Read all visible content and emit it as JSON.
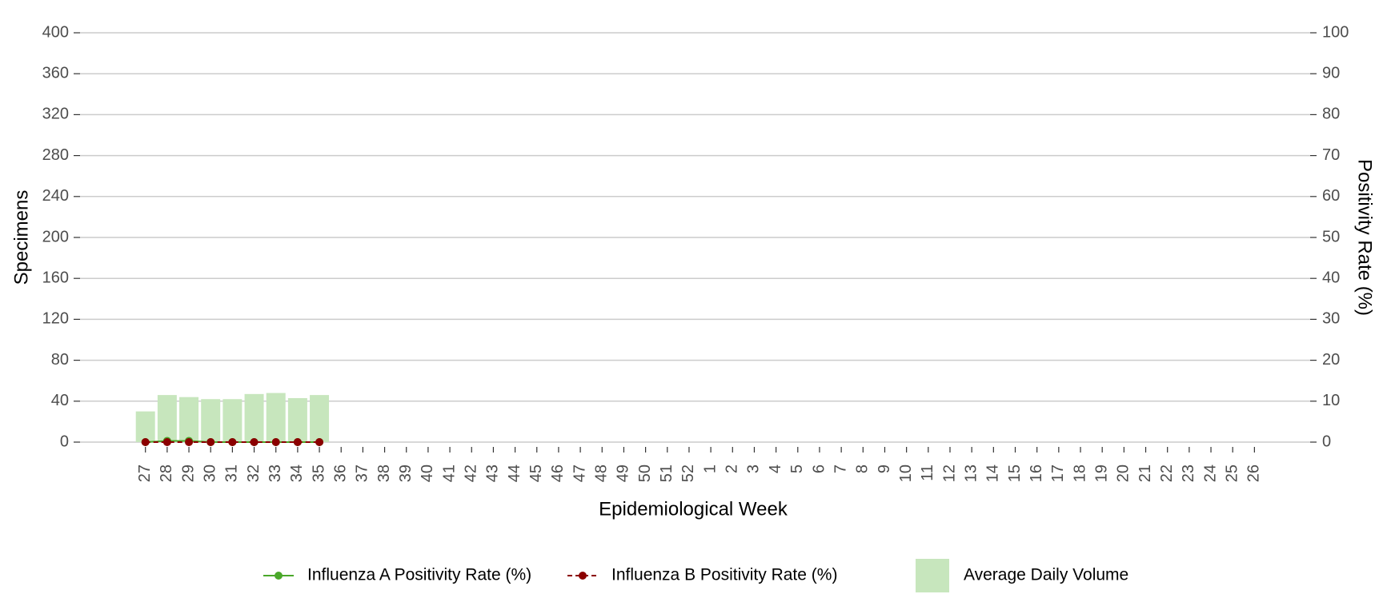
{
  "chart_data": {
    "type": "bar",
    "x_label": "Epidemiological Week",
    "y_label": "Specimens",
    "y2_label": "Positivity Rate (%)",
    "categories": [
      "27",
      "28",
      "29",
      "30",
      "31",
      "32",
      "33",
      "34",
      "35",
      "36",
      "37",
      "38",
      "39",
      "40",
      "41",
      "42",
      "43",
      "44",
      "45",
      "46",
      "47",
      "48",
      "49",
      "50",
      "51",
      "52",
      "1",
      "2",
      "3",
      "4",
      "5",
      "6",
      "7",
      "8",
      "9",
      "10",
      "11",
      "12",
      "13",
      "14",
      "15",
      "16",
      "17",
      "18",
      "19",
      "20",
      "21",
      "22",
      "23",
      "24",
      "25",
      "26"
    ],
    "series": [
      {
        "name": "Influenza A Positivity Rate (%)",
        "type": "line",
        "axis": "y2",
        "color": "#4aa82a",
        "dashed": false,
        "values": [
          0,
          0.3,
          0.3,
          0,
          0,
          0,
          0,
          0,
          0,
          null,
          null,
          null,
          null,
          null,
          null,
          null,
          null,
          null,
          null,
          null,
          null,
          null,
          null,
          null,
          null,
          null,
          null,
          null,
          null,
          null,
          null,
          null,
          null,
          null,
          null,
          null,
          null,
          null,
          null,
          null,
          null,
          null,
          null,
          null,
          null,
          null,
          null,
          null,
          null,
          null,
          null,
          null
        ]
      },
      {
        "name": "Influenza B Positivity Rate (%)",
        "type": "line",
        "axis": "y2",
        "color": "#8b0000",
        "dashed": true,
        "values": [
          0,
          0,
          0,
          0,
          0,
          0,
          0,
          0,
          0,
          null,
          null,
          null,
          null,
          null,
          null,
          null,
          null,
          null,
          null,
          null,
          null,
          null,
          null,
          null,
          null,
          null,
          null,
          null,
          null,
          null,
          null,
          null,
          null,
          null,
          null,
          null,
          null,
          null,
          null,
          null,
          null,
          null,
          null,
          null,
          null,
          null,
          null,
          null,
          null,
          null,
          null,
          null
        ]
      },
      {
        "name": "Average Daily Volume",
        "type": "bar",
        "color": "#c7e6bd",
        "values": [
          30,
          46,
          44,
          42,
          42,
          47,
          48,
          43,
          46,
          null,
          null,
          null,
          null,
          null,
          null,
          null,
          null,
          null,
          null,
          null,
          null,
          null,
          null,
          null,
          null,
          null,
          null,
          null,
          null,
          null,
          null,
          null,
          null,
          null,
          null,
          null,
          null,
          null,
          null,
          null,
          null,
          null,
          null,
          null,
          null,
          null,
          null,
          null,
          null,
          null,
          null,
          null
        ]
      }
    ],
    "ylim": [
      0,
      400
    ],
    "yticks": [
      0,
      40,
      80,
      120,
      160,
      200,
      240,
      280,
      320,
      360,
      400
    ],
    "y2lim": [
      0,
      100
    ],
    "y2ticks": [
      0,
      10,
      20,
      30,
      40,
      50,
      60,
      70,
      80,
      90,
      100
    ],
    "grid": true,
    "legend": "bottom"
  }
}
